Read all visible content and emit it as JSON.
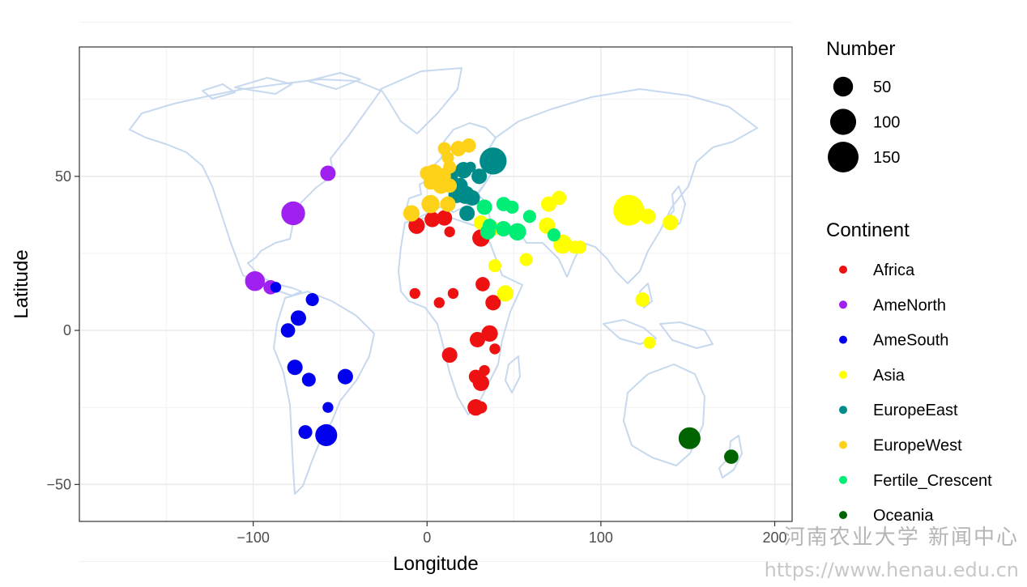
{
  "chart_data": {
    "type": "scatter",
    "xlabel": "Longitude",
    "ylabel": "Latitude",
    "xlim": [
      -200,
      210
    ],
    "ylim": [
      -62,
      92
    ],
    "x_ticks": [
      -100,
      0,
      100,
      200
    ],
    "x_tick_labels": [
      "−100",
      "0",
      "100",
      "200"
    ],
    "y_ticks": [
      -50,
      0,
      50
    ],
    "y_tick_labels": [
      "−50",
      "0",
      "50"
    ],
    "grid": true,
    "basemap": "world-country-outlines",
    "basemap_color": "#c6d9ee",
    "size_legend": {
      "title": "Number",
      "entries": [
        {
          "label": "50",
          "value": 50
        },
        {
          "label": "100",
          "value": 100
        },
        {
          "label": "150",
          "value": 150
        }
      ]
    },
    "color_legend": {
      "title": "Continent",
      "entries": [
        {
          "label": "Africa",
          "color": "#ee1111"
        },
        {
          "label": "AmeNorth",
          "color": "#a020f0"
        },
        {
          "label": "AmeSouth",
          "color": "#0000ee"
        },
        {
          "label": "Asia",
          "color": "#ffff00"
        },
        {
          "label": "EuropeEast",
          "color": "#008b8b"
        },
        {
          "label": "EuropeWest",
          "color": "#ffd21a"
        },
        {
          "label": "Fertile_Crescent",
          "color": "#00ee76"
        },
        {
          "label": "Oceania",
          "color": "#006400"
        }
      ]
    },
    "series": [
      {
        "name": "Africa",
        "points": [
          {
            "x": -6,
            "y": 34,
            "n": 30
          },
          {
            "x": 3,
            "y": 36,
            "n": 25
          },
          {
            "x": 10,
            "y": 36.5,
            "n": 25
          },
          {
            "x": 13,
            "y": 32,
            "n": 8
          },
          {
            "x": 31,
            "y": 30,
            "n": 35
          },
          {
            "x": 32,
            "y": 31,
            "n": 12
          },
          {
            "x": -7,
            "y": 12,
            "n": 8
          },
          {
            "x": 7,
            "y": 9,
            "n": 8
          },
          {
            "x": 15,
            "y": 12,
            "n": 8
          },
          {
            "x": 32,
            "y": 15,
            "n": 20
          },
          {
            "x": 38,
            "y": 9,
            "n": 25
          },
          {
            "x": 36,
            "y": -1,
            "n": 30
          },
          {
            "x": 29,
            "y": -3,
            "n": 25
          },
          {
            "x": 39,
            "y": -6,
            "n": 8
          },
          {
            "x": 13,
            "y": -8,
            "n": 25
          },
          {
            "x": 33,
            "y": -13,
            "n": 8
          },
          {
            "x": 28,
            "y": -15,
            "n": 18
          },
          {
            "x": 31,
            "y": -17,
            "n": 30
          },
          {
            "x": 28,
            "y": -25,
            "n": 30
          },
          {
            "x": 31,
            "y": -25,
            "n": 12
          }
        ]
      },
      {
        "name": "AmeNorth",
        "points": [
          {
            "x": -57,
            "y": 51,
            "n": 25
          },
          {
            "x": -77,
            "y": 38,
            "n": 80
          },
          {
            "x": -99,
            "y": 16,
            "n": 50
          },
          {
            "x": -90,
            "y": 14,
            "n": 20
          }
        ]
      },
      {
        "name": "AmeSouth",
        "points": [
          {
            "x": -87,
            "y": 14,
            "n": 8
          },
          {
            "x": -66,
            "y": 10,
            "n": 15
          },
          {
            "x": -74,
            "y": 4,
            "n": 25
          },
          {
            "x": -80,
            "y": 0,
            "n": 20
          },
          {
            "x": -76,
            "y": -12,
            "n": 25
          },
          {
            "x": -68,
            "y": -16,
            "n": 18
          },
          {
            "x": -47,
            "y": -15,
            "n": 25
          },
          {
            "x": -57,
            "y": -25,
            "n": 8
          },
          {
            "x": -70,
            "y": -33,
            "n": 18
          },
          {
            "x": -58,
            "y": -34,
            "n": 65
          }
        ]
      },
      {
        "name": "Asia",
        "points": [
          {
            "x": 31,
            "y": 35,
            "n": 20
          },
          {
            "x": 40,
            "y": 33,
            "n": 12
          },
          {
            "x": 39,
            "y": 21,
            "n": 15
          },
          {
            "x": 45,
            "y": 12,
            "n": 30
          },
          {
            "x": 57,
            "y": 23,
            "n": 15
          },
          {
            "x": 70,
            "y": 41,
            "n": 25
          },
          {
            "x": 76,
            "y": 43,
            "n": 20
          },
          {
            "x": 69,
            "y": 34,
            "n": 30
          },
          {
            "x": 78,
            "y": 28,
            "n": 45
          },
          {
            "x": 85,
            "y": 27,
            "n": 15
          },
          {
            "x": 88,
            "y": 27,
            "n": 15
          },
          {
            "x": 116,
            "y": 39,
            "n": 150
          },
          {
            "x": 127,
            "y": 37,
            "n": 25
          },
          {
            "x": 140,
            "y": 35,
            "n": 25
          },
          {
            "x": 124,
            "y": 10,
            "n": 20
          },
          {
            "x": 128,
            "y": -4,
            "n": 12
          }
        ]
      },
      {
        "name": "EuropeEast",
        "points": [
          {
            "x": 38,
            "y": 55,
            "n": 110
          },
          {
            "x": 21,
            "y": 52,
            "n": 30
          },
          {
            "x": 30,
            "y": 50,
            "n": 25
          },
          {
            "x": 25,
            "y": 53,
            "n": 8
          },
          {
            "x": 14,
            "y": 50,
            "n": 15
          },
          {
            "x": 19,
            "y": 47,
            "n": 25
          },
          {
            "x": 17,
            "y": 44,
            "n": 30
          },
          {
            "x": 22,
            "y": 44,
            "n": 40
          },
          {
            "x": 26,
            "y": 43,
            "n": 25
          },
          {
            "x": 23,
            "y": 38,
            "n": 25
          }
        ]
      },
      {
        "name": "EuropeWest",
        "points": [
          {
            "x": 10,
            "y": 59,
            "n": 15
          },
          {
            "x": 18,
            "y": 59,
            "n": 25
          },
          {
            "x": 24,
            "y": 60,
            "n": 20
          },
          {
            "x": 12,
            "y": 56,
            "n": 12
          },
          {
            "x": 13,
            "y": 53,
            "n": 15
          },
          {
            "x": 0,
            "y": 51,
            "n": 20
          },
          {
            "x": 4,
            "y": 51,
            "n": 40
          },
          {
            "x": 9,
            "y": 50,
            "n": 30
          },
          {
            "x": 2,
            "y": 48,
            "n": 20
          },
          {
            "x": 8,
            "y": 47,
            "n": 30
          },
          {
            "x": 13,
            "y": 47,
            "n": 20
          },
          {
            "x": 2,
            "y": 41,
            "n": 40
          },
          {
            "x": 12,
            "y": 41,
            "n": 25
          },
          {
            "x": -9,
            "y": 38,
            "n": 30
          }
        ]
      },
      {
        "name": "Fertile_Crescent",
        "points": [
          {
            "x": 33,
            "y": 40,
            "n": 25
          },
          {
            "x": 44,
            "y": 41,
            "n": 20
          },
          {
            "x": 49,
            "y": 40,
            "n": 15
          },
          {
            "x": 59,
            "y": 37,
            "n": 15
          },
          {
            "x": 36,
            "y": 34,
            "n": 18
          },
          {
            "x": 35,
            "y": 32,
            "n": 25
          },
          {
            "x": 44,
            "y": 33,
            "n": 25
          },
          {
            "x": 52,
            "y": 32,
            "n": 35
          },
          {
            "x": 73,
            "y": 31,
            "n": 15
          }
        ]
      },
      {
        "name": "Oceania",
        "points": [
          {
            "x": 151,
            "y": -35,
            "n": 65
          },
          {
            "x": 175,
            "y": -41,
            "n": 20
          }
        ]
      }
    ]
  },
  "watermark": {
    "line1": "河南农业大学 新闻中心",
    "line2": "https://www.henau.edu.cn"
  }
}
